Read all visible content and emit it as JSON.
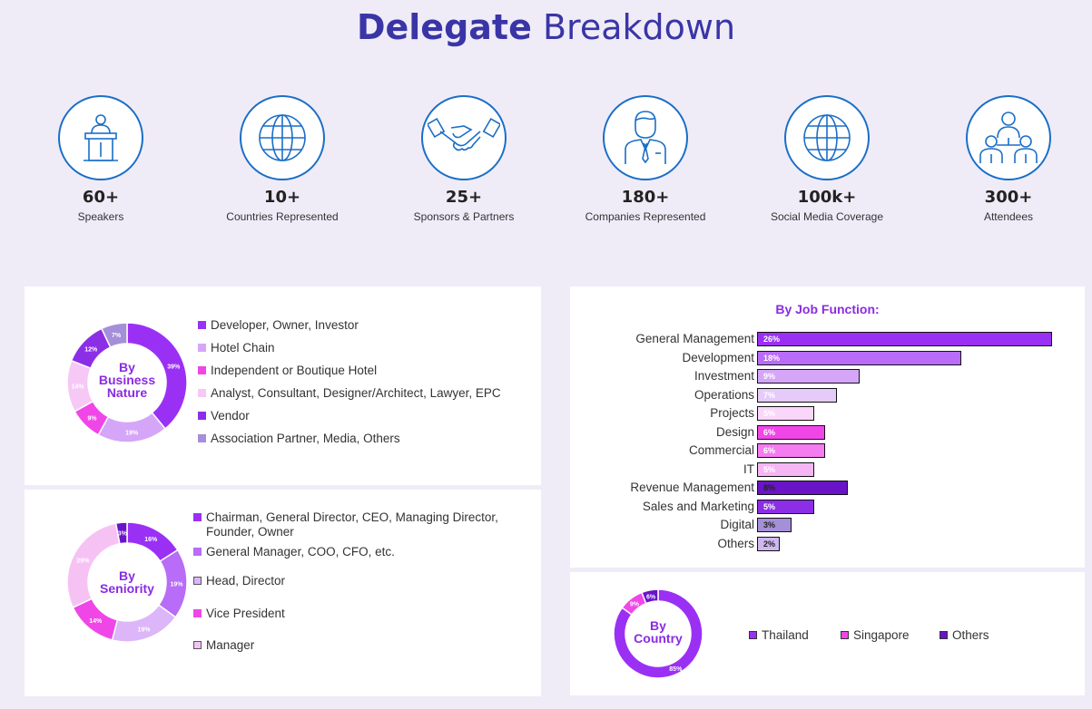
{
  "header": {
    "title_bold": "Delegate",
    "title_light": "Breakdown"
  },
  "stats": [
    {
      "value": "60+",
      "label": "Speakers",
      "icon": "podium-speaker-icon"
    },
    {
      "value": "10+",
      "label": "Countries Represented",
      "icon": "globe-icon"
    },
    {
      "value": "25+",
      "label": "Sponsors & Partners",
      "icon": "handshake-icon"
    },
    {
      "value": "180+",
      "label": "Companies Represented",
      "icon": "businessman-icon"
    },
    {
      "value": "100k+",
      "label": "Social Media Coverage",
      "icon": "globe-icon"
    },
    {
      "value": "300+",
      "label": "Attendees",
      "icon": "people-group-icon"
    }
  ],
  "chart_data": [
    {
      "type": "pie",
      "title": "By Business Nature",
      "center_lines": [
        "By",
        "Business",
        "Nature"
      ],
      "series": [
        {
          "name": "Developer, Owner, Investor",
          "value": 39,
          "label": "39%",
          "color": "#9b30f5"
        },
        {
          "name": "Hotel Chain",
          "value": 19,
          "label": "19%",
          "color": "#d5a6f8"
        },
        {
          "name": "Independent or Boutique Hotel",
          "value": 9,
          "label": "9%",
          "color": "#f046e8"
        },
        {
          "name": "Analyst, Consultant, Designer/Architect, Lawyer, EPC",
          "value": 14,
          "label": "14%",
          "color": "#f6c8f6"
        },
        {
          "name": "Vendor",
          "value": 12,
          "label": "12%",
          "color": "#8c2ee6"
        },
        {
          "name": "Association Partner, Media, Others",
          "value": 7,
          "label": "7%",
          "color": "#a58fd8"
        }
      ]
    },
    {
      "type": "pie",
      "title": "By Seniority",
      "center_lines": [
        "By",
        "Seniority"
      ],
      "series": [
        {
          "name": "Chairman, General Director, CEO, Managing Director, Founder, Owner",
          "value": 16,
          "label": "16%",
          "color": "#9b30f5"
        },
        {
          "name": "General Manager, COO, CFO, etc.",
          "value": 19,
          "label": "19%",
          "color": "#b86cf7"
        },
        {
          "name": "Head, Director",
          "value": 19,
          "label": "19%",
          "color": "#dcb6f8"
        },
        {
          "name": "Vice President",
          "value": 14,
          "label": "14%",
          "color": "#f046e8"
        },
        {
          "name": "Manager",
          "value": 29,
          "label": "29%",
          "color": "#f6c2f4"
        },
        {
          "name": "",
          "value": 3,
          "label": "3%",
          "color": "#6a14c8"
        }
      ]
    },
    {
      "type": "bar",
      "title": "By Job Function:",
      "categories": [
        "General Management",
        "Development",
        "Investment",
        "Operations",
        "Projects",
        "Design",
        "Commercial",
        "IT",
        "Revenue Management",
        "Sales and Marketing",
        "Digital",
        "Others"
      ],
      "values": [
        26,
        18,
        9,
        7,
        5,
        6,
        6,
        5,
        8,
        5,
        3,
        2
      ],
      "value_labels": [
        "26%",
        "18%",
        "9%",
        "7%",
        "5%",
        "6%",
        "6%",
        "5%",
        "8%",
        "5%",
        "3%",
        "2%"
      ],
      "colors": [
        "#9b30f5",
        "#b86cf7",
        "#d5a6f8",
        "#e6cbfa",
        "#fad6fa",
        "#f046e8",
        "#f47cf0",
        "#f6b6f4",
        "#6a14c8",
        "#8c2ee6",
        "#a58fd8",
        "#cdb8ef"
      ],
      "xlim": [
        0,
        26
      ]
    },
    {
      "type": "pie",
      "title": "By Country",
      "center_lines": [
        "By",
        "Country"
      ],
      "series": [
        {
          "name": "Thailand",
          "value": 85,
          "label": "85%",
          "color": "#9b30f5"
        },
        {
          "name": "Singapore",
          "value": 9,
          "label": "9%",
          "color": "#f046e8"
        },
        {
          "name": "Others",
          "value": 6,
          "label": "6%",
          "color": "#6a14c8"
        }
      ]
    }
  ]
}
